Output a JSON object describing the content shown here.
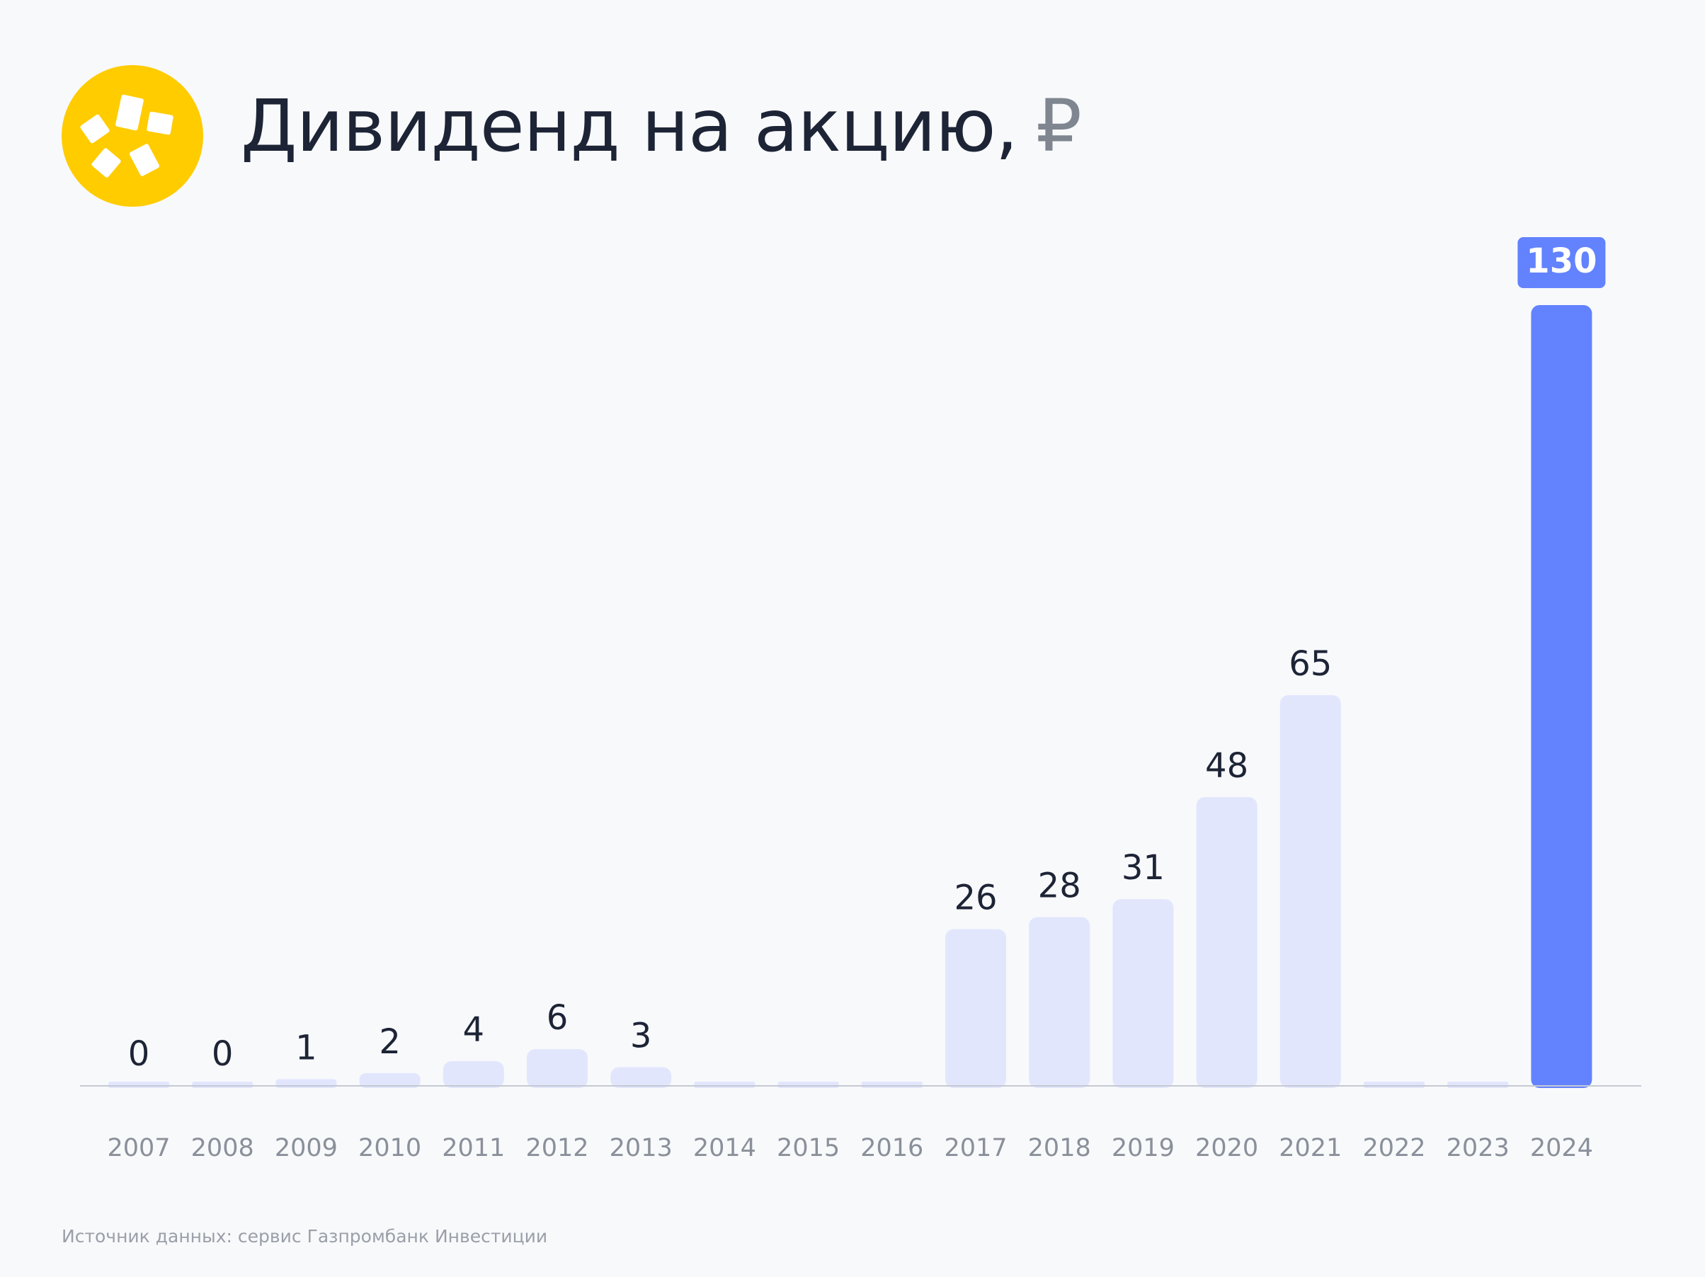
{
  "header": {
    "title": "Дивиденд на акцию,",
    "unit": "₽"
  },
  "colors": {
    "background": "#f8f9fb",
    "bar": "#e2e6fd",
    "highlight_bar": "#6282fe",
    "logo": "#ffcc00",
    "axis": "#c5c9d3",
    "label": "#1d2436",
    "tick": "#8a909a"
  },
  "icons": {
    "logo": "yellow-flower-logo-icon"
  },
  "chart_data": {
    "type": "bar",
    "title": "Дивиденд на акцию, ₽",
    "categories": [
      "2007",
      "2008",
      "2009",
      "2010",
      "2011",
      "2012",
      "2013",
      "2014",
      "2015",
      "2016",
      "2017",
      "2018",
      "2019",
      "2020",
      "2021",
      "2022",
      "2023",
      "2024"
    ],
    "values": [
      0,
      0,
      1,
      2,
      4,
      6,
      3,
      0,
      0,
      0,
      26,
      28,
      31,
      48,
      65,
      0,
      0,
      130
    ],
    "data_labels": [
      "0",
      "0",
      "1",
      "2",
      "4",
      "6",
      "3",
      "",
      "",
      "",
      "26",
      "28",
      "31",
      "48",
      "65",
      "",
      "",
      "130"
    ],
    "highlight": "2024",
    "ylim": [
      0,
      130
    ],
    "grid": false,
    "legend": "none"
  },
  "footer": {
    "source": "Источник данных: сервис Газпромбанк Инвестиции"
  }
}
